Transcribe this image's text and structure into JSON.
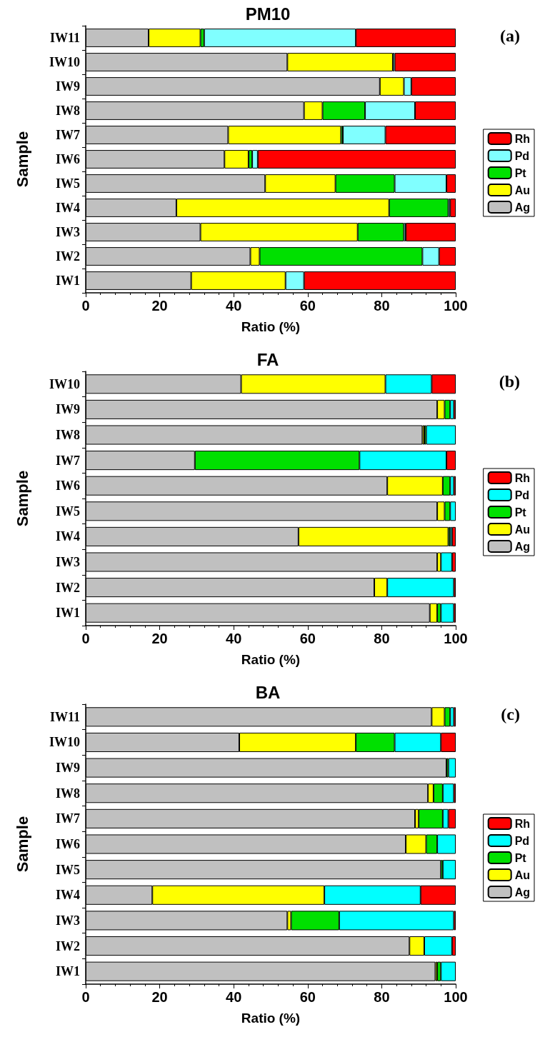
{
  "chart_data": [
    {
      "type": "bar",
      "orientation": "horizontal",
      "stacked": true,
      "title": "PM10",
      "xlabel": "Ratio (%)",
      "ylabel": "Sample",
      "annotations": [
        "(a)"
      ],
      "categories": [
        "IW11",
        "IW10",
        "IW9",
        "IW8",
        "IW7",
        "IW6",
        "IW5",
        "IW4",
        "IW3",
        "IW2",
        "IW1"
      ],
      "series": [
        {
          "name": "Ag",
          "color": "#c0c0c0",
          "values": [
            17,
            54.5,
            79.5,
            59,
            38.5,
            37.5,
            48.5,
            24.5,
            31,
            44.5,
            28.5
          ]
        },
        {
          "name": "Au",
          "color": "#ffff00",
          "values": [
            14,
            28.5,
            6.5,
            5,
            30.5,
            6.5,
            19,
            57.5,
            42.5,
            2.5,
            25.5
          ]
        },
        {
          "name": "Pt",
          "color": "#00e000",
          "values": [
            1,
            0,
            0,
            11.5,
            0.5,
            1,
            16,
            16,
            12.5,
            44,
            0
          ]
        },
        {
          "name": "Pd",
          "color": "#80ffff",
          "values": [
            41,
            0.5,
            2,
            13.5,
            11.5,
            1.5,
            14,
            0.5,
            0.5,
            4.5,
            5
          ]
        },
        {
          "name": "Rh",
          "color": "#ff0000",
          "values": [
            27,
            16.5,
            12,
            11,
            19,
            53.5,
            2.5,
            1.5,
            13.5,
            4.5,
            41
          ]
        }
      ],
      "xlim": [
        0,
        100
      ],
      "xticks": [
        0,
        20,
        40,
        60,
        80,
        100
      ],
      "grid": false,
      "legend": "right"
    },
    {
      "type": "bar",
      "orientation": "horizontal",
      "stacked": true,
      "title": "FA",
      "xlabel": "Ratio (%)",
      "ylabel": "Sample",
      "annotations": [
        "(b)"
      ],
      "categories": [
        "IW10",
        "IW9",
        "IW8",
        "IW7",
        "IW6",
        "IW5",
        "IW4",
        "IW3",
        "IW2",
        "IW1"
      ],
      "series": [
        {
          "name": "Ag",
          "color": "#c0c0c0",
          "values": [
            42,
            95,
            91,
            29.5,
            81.5,
            95,
            57.5,
            95,
            78,
            93
          ]
        },
        {
          "name": "Au",
          "color": "#ffff00",
          "values": [
            39,
            2,
            0.5,
            0,
            15,
            2,
            40.5,
            1,
            3.5,
            2
          ]
        },
        {
          "name": "Pt",
          "color": "#00e000",
          "values": [
            0,
            1.5,
            0.5,
            44.5,
            2,
            1.5,
            0.5,
            0,
            0,
            1
          ]
        },
        {
          "name": "Pd",
          "color": "#00ffff",
          "values": [
            12.5,
            1,
            8,
            23.5,
            1,
            1.5,
            0.5,
            3,
            18,
            3.5
          ]
        },
        {
          "name": "Rh",
          "color": "#ff0000",
          "values": [
            6.5,
            0.5,
            0,
            2.5,
            0.5,
            0,
            1,
            1,
            0.5,
            0.5
          ]
        }
      ],
      "xlim": [
        0,
        100
      ],
      "xticks": [
        0,
        20,
        40,
        60,
        80,
        100
      ],
      "grid": false,
      "legend": "right"
    },
    {
      "type": "bar",
      "orientation": "horizontal",
      "stacked": true,
      "title": "BA",
      "xlabel": "Ratio (%)",
      "ylabel": "Sample",
      "annotations": [
        "(c)"
      ],
      "categories": [
        "IW11",
        "IW10",
        "IW9",
        "IW8",
        "IW7",
        "IW6",
        "IW5",
        "IW4",
        "IW3",
        "IW2",
        "IW1"
      ],
      "series": [
        {
          "name": "Ag",
          "color": "#c0c0c0",
          "values": [
            93.5,
            41.5,
            97.5,
            92.5,
            89,
            86.5,
            96,
            18,
            54.5,
            87.5,
            94.5
          ]
        },
        {
          "name": "Au",
          "color": "#ffff00",
          "values": [
            3.5,
            31.5,
            0,
            1.5,
            1,
            5.5,
            0,
            46.5,
            1,
            4,
            0.5
          ]
        },
        {
          "name": "Pt",
          "color": "#00e000",
          "values": [
            1.5,
            10.5,
            0.5,
            2.5,
            6.5,
            3,
            0.5,
            0,
            13,
            0,
            1
          ]
        },
        {
          "name": "Pd",
          "color": "#00ffff",
          "values": [
            1,
            12.5,
            2,
            3,
            1.5,
            5,
            3.5,
            26,
            31,
            7.5,
            4
          ]
        },
        {
          "name": "Rh",
          "color": "#ff0000",
          "values": [
            0.5,
            4,
            0,
            0.5,
            2,
            0,
            0,
            9.5,
            0.5,
            1,
            0
          ]
        }
      ],
      "xlim": [
        0,
        100
      ],
      "xticks": [
        0,
        20,
        40,
        60,
        80,
        100
      ],
      "grid": false,
      "legend": "right"
    }
  ]
}
